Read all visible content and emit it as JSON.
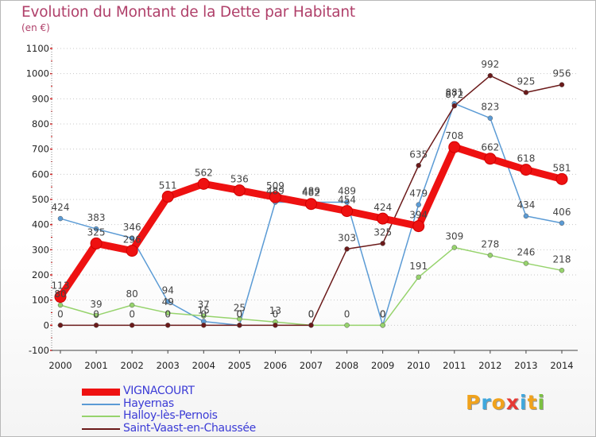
{
  "header": {
    "title": "Evolution du Montant de la Dette par Habitant",
    "unit": "(en €)"
  },
  "brand": {
    "letters": [
      "P",
      "r",
      "o",
      "x",
      "i",
      "t",
      "i"
    ],
    "colors": [
      "#f0a21c",
      "#3fa7dd",
      "#f0a21c",
      "#e53935",
      "#3fa7dd",
      "#f0a21c",
      "#7cc142"
    ]
  },
  "chart_data": {
    "type": "line",
    "title": "Evolution du Montant de la Dette par Habitant",
    "ylabel": "(en €)",
    "xlabel": "",
    "ylim": [
      -100,
      1100
    ],
    "yticks": [
      -100,
      0,
      100,
      200,
      300,
      400,
      500,
      600,
      700,
      800,
      900,
      1000,
      1100
    ],
    "grid": true,
    "legend_position": "bottom-left",
    "x": [
      "2000",
      "2001",
      "2002",
      "2003",
      "2004",
      "2005",
      "2006",
      "2007",
      "2008",
      "2009",
      "2010",
      "2011",
      "2012",
      "2013",
      "2014"
    ],
    "series": [
      {
        "name": "VIGNACOURT",
        "color": "#ee1111",
        "values": [
          113,
          325,
          296,
          511,
          562,
          536,
          509,
          482,
          454,
          424,
          394,
          708,
          662,
          618,
          581
        ],
        "labels": [
          "113",
          "325",
          "296",
          "511",
          "562",
          "536",
          "509",
          "482",
          "454",
          "424",
          "394",
          "708",
          "662",
          "618",
          "581"
        ]
      },
      {
        "name": "Hayernas",
        "color": "#5b9bd5",
        "values": [
          424,
          383,
          346,
          94,
          15,
          0,
          489,
          489,
          489,
          0,
          479,
          881,
          823,
          434,
          406
        ],
        "labels": [
          "424",
          "383",
          "346",
          "94",
          "15",
          "0",
          "489",
          "489",
          "489",
          "0",
          "479",
          "881",
          "823",
          "434",
          "406"
        ]
      },
      {
        "name": "Halloy-lès-Pernois",
        "color": "#96d36c",
        "values": [
          80,
          39,
          80,
          49,
          37,
          25,
          13,
          0,
          0,
          0,
          191,
          309,
          278,
          246,
          218
        ],
        "labels": [
          "80",
          "39",
          "80",
          "49",
          "37",
          "25",
          "13",
          "0",
          "0",
          "0",
          "191",
          "309",
          "278",
          "246",
          "218"
        ]
      },
      {
        "name": "Saint-Vaast-en-Chaussée",
        "color": "#6b1a1a",
        "values": [
          0,
          0,
          0,
          0,
          0,
          0,
          0,
          0,
          303,
          325,
          635,
          872,
          992,
          925,
          956
        ],
        "labels": [
          "0",
          "0",
          "0",
          "0",
          "0",
          "0",
          "0",
          "0",
          "303",
          "325",
          "635",
          "872",
          "992",
          "925",
          "956"
        ]
      }
    ]
  }
}
